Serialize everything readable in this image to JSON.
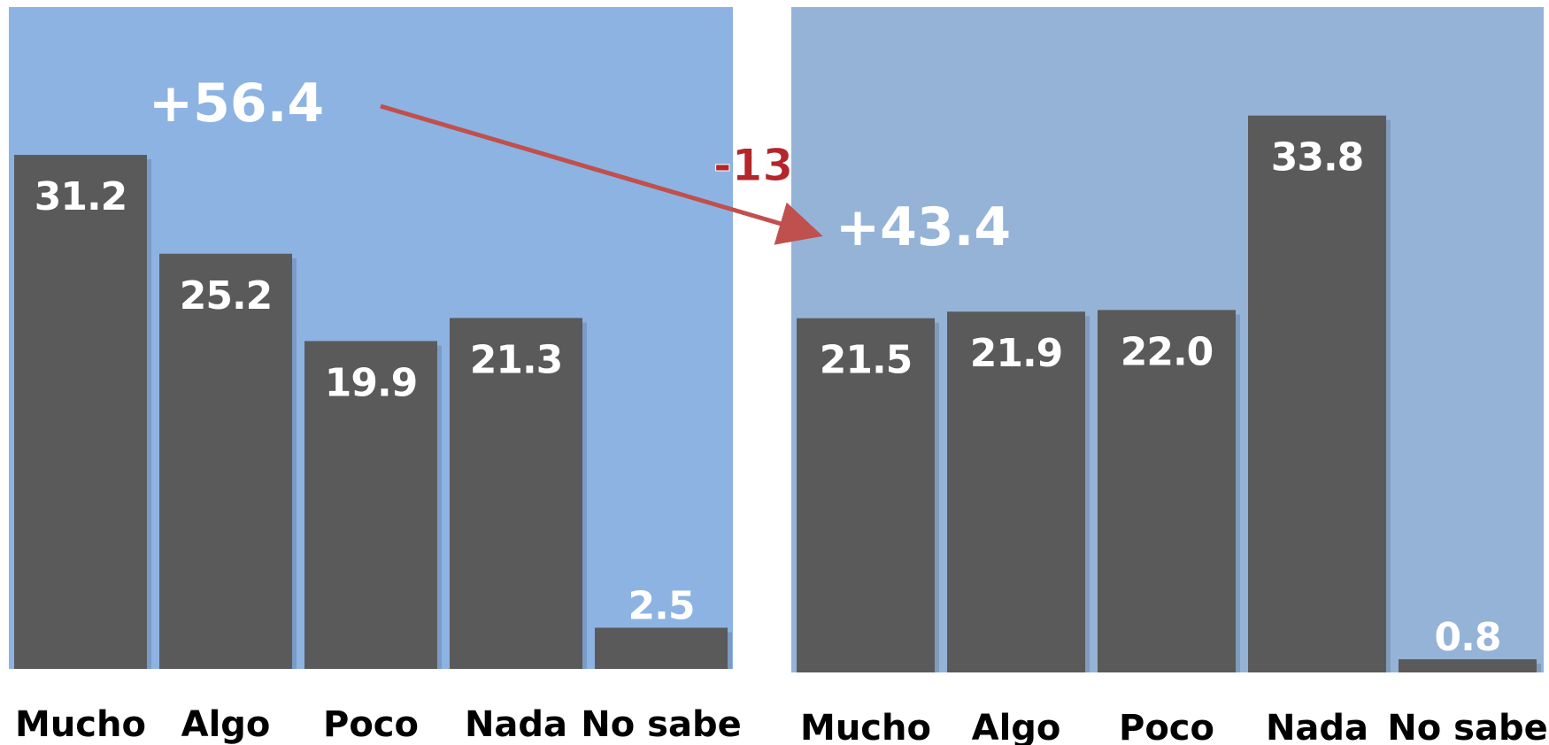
{
  "chart_data": [
    {
      "type": "bar",
      "categories": [
        "Mucho",
        "Algo",
        "Poco",
        "Nada",
        "No sabe"
      ],
      "values": [
        31.2,
        25.2,
        19.9,
        21.3,
        2.5
      ],
      "value_labels": [
        "31.2",
        "25.2",
        "19.9",
        "21.3",
        "2.5"
      ],
      "ylim": [
        0,
        37
      ],
      "grid": false,
      "annotation": "+56.4"
    },
    {
      "type": "bar",
      "categories": [
        "Mucho",
        "Algo",
        "Poco",
        "Nada",
        "No sabe"
      ],
      "values": [
        21.5,
        21.9,
        22.0,
        33.8,
        0.8
      ],
      "value_labels": [
        "21.5",
        "21.9",
        "22.0",
        "33.8",
        "0.8"
      ],
      "ylim": [
        0,
        37
      ],
      "grid": false,
      "annotation": "+43.4"
    }
  ],
  "change_label": "-13",
  "colors": {
    "panel_left": "#8db3e2",
    "panel_right": "#95b3d7",
    "bar": "#5a5a5a",
    "arrow": "#c0504d",
    "change_label": "#b3262a"
  }
}
